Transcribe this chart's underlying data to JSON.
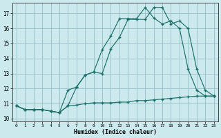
{
  "xlabel": "Humidex (Indice chaleur)",
  "background_color": "#cce9ee",
  "grid_color": "#9dc4cc",
  "line_color": "#1a7068",
  "xlim": [
    -0.5,
    23.5
  ],
  "ylim": [
    9.8,
    17.7
  ],
  "yticks": [
    10,
    11,
    12,
    13,
    14,
    15,
    16,
    17
  ],
  "xticks": [
    0,
    1,
    2,
    3,
    4,
    5,
    6,
    7,
    8,
    9,
    10,
    11,
    12,
    13,
    14,
    15,
    16,
    17,
    18,
    19,
    20,
    21,
    22,
    23
  ],
  "series1_x": [
    0,
    1,
    2,
    3,
    4,
    5,
    6,
    7,
    8,
    9,
    10,
    11,
    12,
    13,
    14,
    15,
    16,
    17,
    18,
    19,
    20,
    21,
    22,
    23
  ],
  "series1_y": [
    10.85,
    10.6,
    10.6,
    10.6,
    10.5,
    10.4,
    10.85,
    10.9,
    11.0,
    11.05,
    11.05,
    11.05,
    11.1,
    11.1,
    11.2,
    11.2,
    11.25,
    11.3,
    11.35,
    11.4,
    11.45,
    11.5,
    11.5,
    11.5
  ],
  "series2_x": [
    0,
    1,
    2,
    3,
    4,
    5,
    6,
    7,
    8,
    9,
    10,
    11,
    12,
    13,
    14,
    15,
    16,
    17,
    18,
    19,
    20,
    21,
    22,
    23
  ],
  "series2_y": [
    10.85,
    10.6,
    10.6,
    10.6,
    10.5,
    10.4,
    11.9,
    12.1,
    12.9,
    13.1,
    14.6,
    15.5,
    16.65,
    16.65,
    16.65,
    17.4,
    16.7,
    16.3,
    16.5,
    16.0,
    13.3,
    11.9,
    11.5,
    11.5
  ],
  "series3_x": [
    0,
    1,
    2,
    3,
    4,
    5,
    6,
    7,
    8,
    9,
    10,
    11,
    12,
    13,
    14,
    15,
    16,
    17,
    18,
    19,
    20,
    21,
    22,
    23
  ],
  "series3_y": [
    10.85,
    10.6,
    10.6,
    10.6,
    10.5,
    10.4,
    10.85,
    12.1,
    12.9,
    13.1,
    13.0,
    14.65,
    15.4,
    16.6,
    16.6,
    16.6,
    17.4,
    17.4,
    16.3,
    16.5,
    16.0,
    13.3,
    11.9,
    11.5
  ]
}
